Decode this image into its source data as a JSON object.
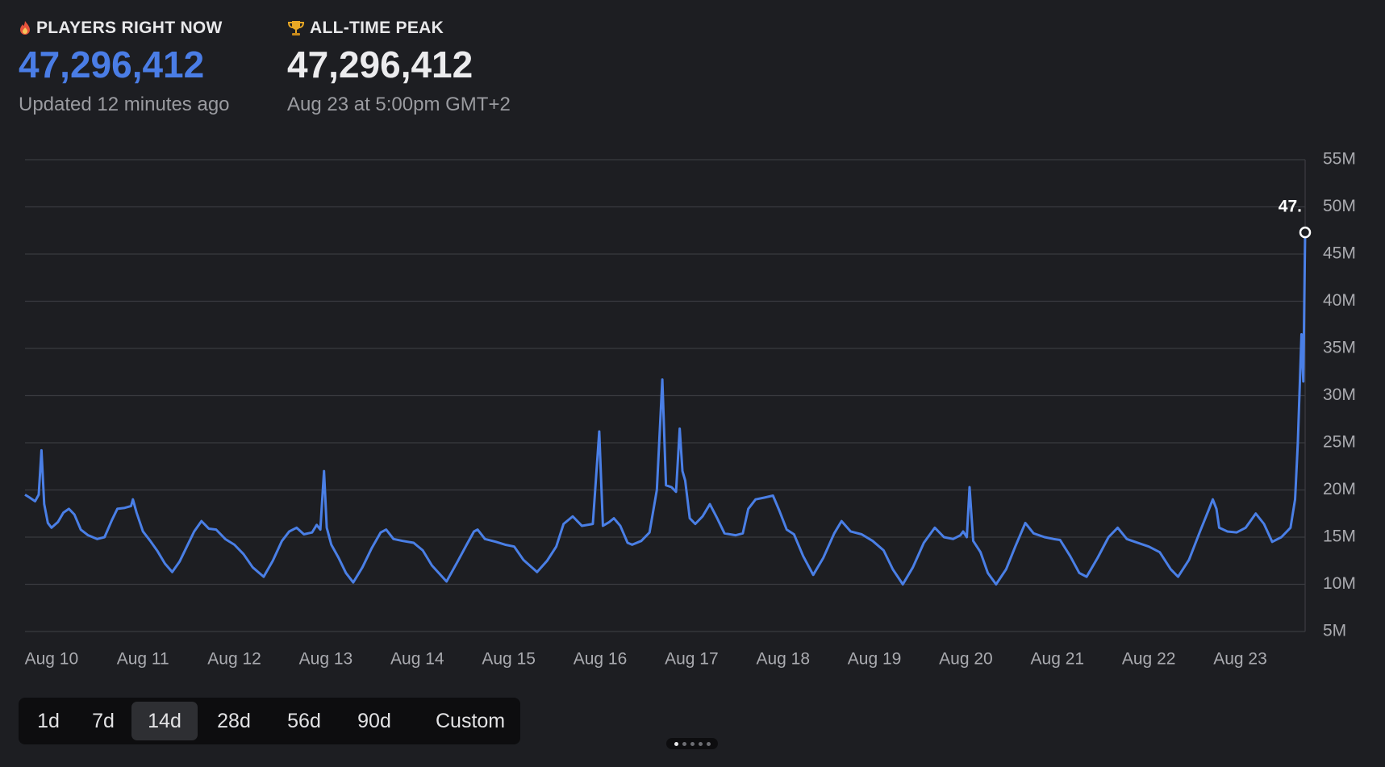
{
  "stats": [
    {
      "label": "PLAYERS RIGHT NOW",
      "value": "47,296,412",
      "note": "Updated 12 minutes ago",
      "color": "#4a7de6"
    },
    {
      "label": "ALL-TIME PEAK",
      "value": "47,296,412",
      "note": "Aug 23 at 5:00pm GMT+2",
      "color": "#ececee"
    }
  ],
  "chart_data": {
    "type": "line",
    "annotation": "47.",
    "xlim": [
      9.71,
      23.71
    ],
    "xticks": [
      {
        "value": 10,
        "label": "Aug 10"
      },
      {
        "value": 11,
        "label": "Aug 11"
      },
      {
        "value": 12,
        "label": "Aug 12"
      },
      {
        "value": 13,
        "label": "Aug 13"
      },
      {
        "value": 14,
        "label": "Aug 14"
      },
      {
        "value": 15,
        "label": "Aug 15"
      },
      {
        "value": 16,
        "label": "Aug 16"
      },
      {
        "value": 17,
        "label": "Aug 17"
      },
      {
        "value": 18,
        "label": "Aug 18"
      },
      {
        "value": 19,
        "label": "Aug 19"
      },
      {
        "value": 20,
        "label": "Aug 20"
      },
      {
        "value": 21,
        "label": "Aug 21"
      },
      {
        "value": 22,
        "label": "Aug 22"
      },
      {
        "value": 23,
        "label": "Aug 23"
      }
    ],
    "ylim": [
      5,
      55
    ],
    "yticks": [
      {
        "value": 5,
        "label": "5M"
      },
      {
        "value": 10,
        "label": "10M"
      },
      {
        "value": 15,
        "label": "15M"
      },
      {
        "value": 20,
        "label": "20M"
      },
      {
        "value": 25,
        "label": "25M"
      },
      {
        "value": 30,
        "label": "30M"
      },
      {
        "value": 35,
        "label": "35M"
      },
      {
        "value": 40,
        "label": "40M"
      },
      {
        "value": 45,
        "label": "45M"
      },
      {
        "value": 50,
        "label": "50M"
      },
      {
        "value": 55,
        "label": "55M"
      }
    ],
    "grid": true,
    "color": "#4a7fe6",
    "x": [
      9.71,
      9.76,
      9.82,
      9.86,
      9.89,
      9.92,
      9.96,
      10.0,
      10.07,
      10.13,
      10.19,
      10.25,
      10.32,
      10.4,
      10.5,
      10.58,
      10.66,
      10.72,
      10.8,
      10.87,
      10.89,
      10.93,
      11.0,
      11.08,
      11.16,
      11.24,
      11.32,
      11.4,
      11.48,
      11.56,
      11.64,
      11.72,
      11.8,
      11.9,
      12.0,
      12.1,
      12.2,
      12.32,
      12.42,
      12.52,
      12.6,
      12.68,
      12.76,
      12.85,
      12.9,
      12.94,
      12.98,
      13.01,
      13.06,
      13.14,
      13.22,
      13.3,
      13.4,
      13.5,
      13.6,
      13.66,
      13.74,
      13.84,
      13.96,
      14.06,
      14.16,
      14.32,
      14.44,
      14.54,
      14.62,
      14.66,
      14.74,
      14.86,
      14.96,
      15.06,
      15.16,
      15.31,
      15.42,
      15.52,
      15.6,
      15.7,
      15.8,
      15.92,
      15.99,
      16.03,
      16.1,
      16.15,
      16.22,
      16.3,
      16.35,
      16.45,
      16.54,
      16.62,
      16.68,
      16.72,
      16.78,
      16.83,
      16.87,
      16.9,
      16.93,
      16.98,
      17.04,
      17.12,
      17.2,
      17.28,
      17.36,
      17.48,
      17.56,
      17.62,
      17.7,
      17.8,
      17.89,
      17.96,
      18.04,
      18.12,
      18.22,
      18.33,
      18.44,
      18.56,
      18.64,
      18.74,
      18.86,
      18.98,
      19.1,
      19.2,
      19.31,
      19.42,
      19.54,
      19.66,
      19.76,
      19.86,
      19.94,
      19.97,
      20.01,
      20.04,
      20.08,
      20.16,
      20.24,
      20.33,
      20.44,
      20.54,
      20.65,
      20.74,
      20.86,
      20.96,
      21.03,
      21.14,
      21.24,
      21.32,
      21.44,
      21.56,
      21.66,
      21.76,
      21.88,
      22.0,
      22.12,
      22.24,
      22.32,
      22.44,
      22.56,
      22.66,
      22.7,
      22.74,
      22.77,
      22.86,
      22.96,
      23.06,
      23.17,
      23.26,
      23.35,
      23.45,
      23.55,
      23.6,
      23.63,
      23.67,
      23.69,
      23.71
    ],
    "values": [
      19.5,
      19.2,
      18.8,
      19.5,
      24.2,
      18.5,
      16.5,
      16.0,
      16.6,
      17.6,
      18.0,
      17.4,
      15.8,
      15.2,
      14.8,
      15.0,
      16.8,
      18.0,
      18.1,
      18.3,
      19.0,
      17.6,
      15.6,
      14.6,
      13.5,
      12.2,
      11.3,
      12.4,
      14.0,
      15.6,
      16.7,
      15.9,
      15.8,
      14.8,
      14.2,
      13.2,
      11.8,
      10.8,
      12.5,
      14.6,
      15.6,
      16.0,
      15.3,
      15.5,
      16.3,
      15.8,
      22.0,
      16.0,
      14.2,
      12.8,
      11.2,
      10.2,
      11.8,
      13.8,
      15.5,
      15.8,
      14.8,
      14.6,
      14.4,
      13.6,
      12.0,
      10.3,
      12.4,
      14.2,
      15.6,
      15.8,
      14.8,
      14.5,
      14.2,
      14.0,
      12.6,
      11.3,
      12.5,
      14.0,
      16.4,
      17.2,
      16.2,
      16.4,
      26.2,
      16.2,
      16.6,
      17.0,
      16.2,
      14.4,
      14.2,
      14.6,
      15.5,
      20.0,
      31.7,
      20.5,
      20.3,
      19.8,
      26.5,
      22.0,
      21.0,
      17.0,
      16.4,
      17.2,
      18.5,
      17.0,
      15.4,
      15.2,
      15.4,
      18.0,
      19.0,
      19.2,
      19.4,
      17.8,
      15.8,
      15.3,
      13.0,
      11.0,
      12.8,
      15.4,
      16.7,
      15.6,
      15.3,
      14.6,
      13.6,
      11.6,
      10.0,
      11.8,
      14.4,
      16.0,
      15.0,
      14.8,
      15.2,
      15.6,
      15.0,
      20.3,
      14.6,
      13.4,
      11.2,
      10.0,
      11.6,
      14.0,
      16.5,
      15.4,
      15.0,
      14.8,
      14.7,
      13.0,
      11.2,
      10.8,
      12.8,
      15.0,
      16.0,
      14.8,
      14.4,
      14.0,
      13.4,
      11.6,
      10.8,
      12.6,
      15.6,
      18.0,
      19.0,
      18.0,
      16.0,
      15.6,
      15.5,
      16.0,
      17.5,
      16.4,
      14.5,
      15.0,
      16.0,
      19.0,
      25.0,
      36.5,
      31.5,
      47.296412
    ]
  },
  "range_buttons": [
    {
      "label": "1d"
    },
    {
      "label": "7d"
    },
    {
      "label": "14d",
      "selected": true
    },
    {
      "label": "28d"
    },
    {
      "label": "56d"
    },
    {
      "label": "90d"
    },
    {
      "label": "Custom"
    }
  ]
}
